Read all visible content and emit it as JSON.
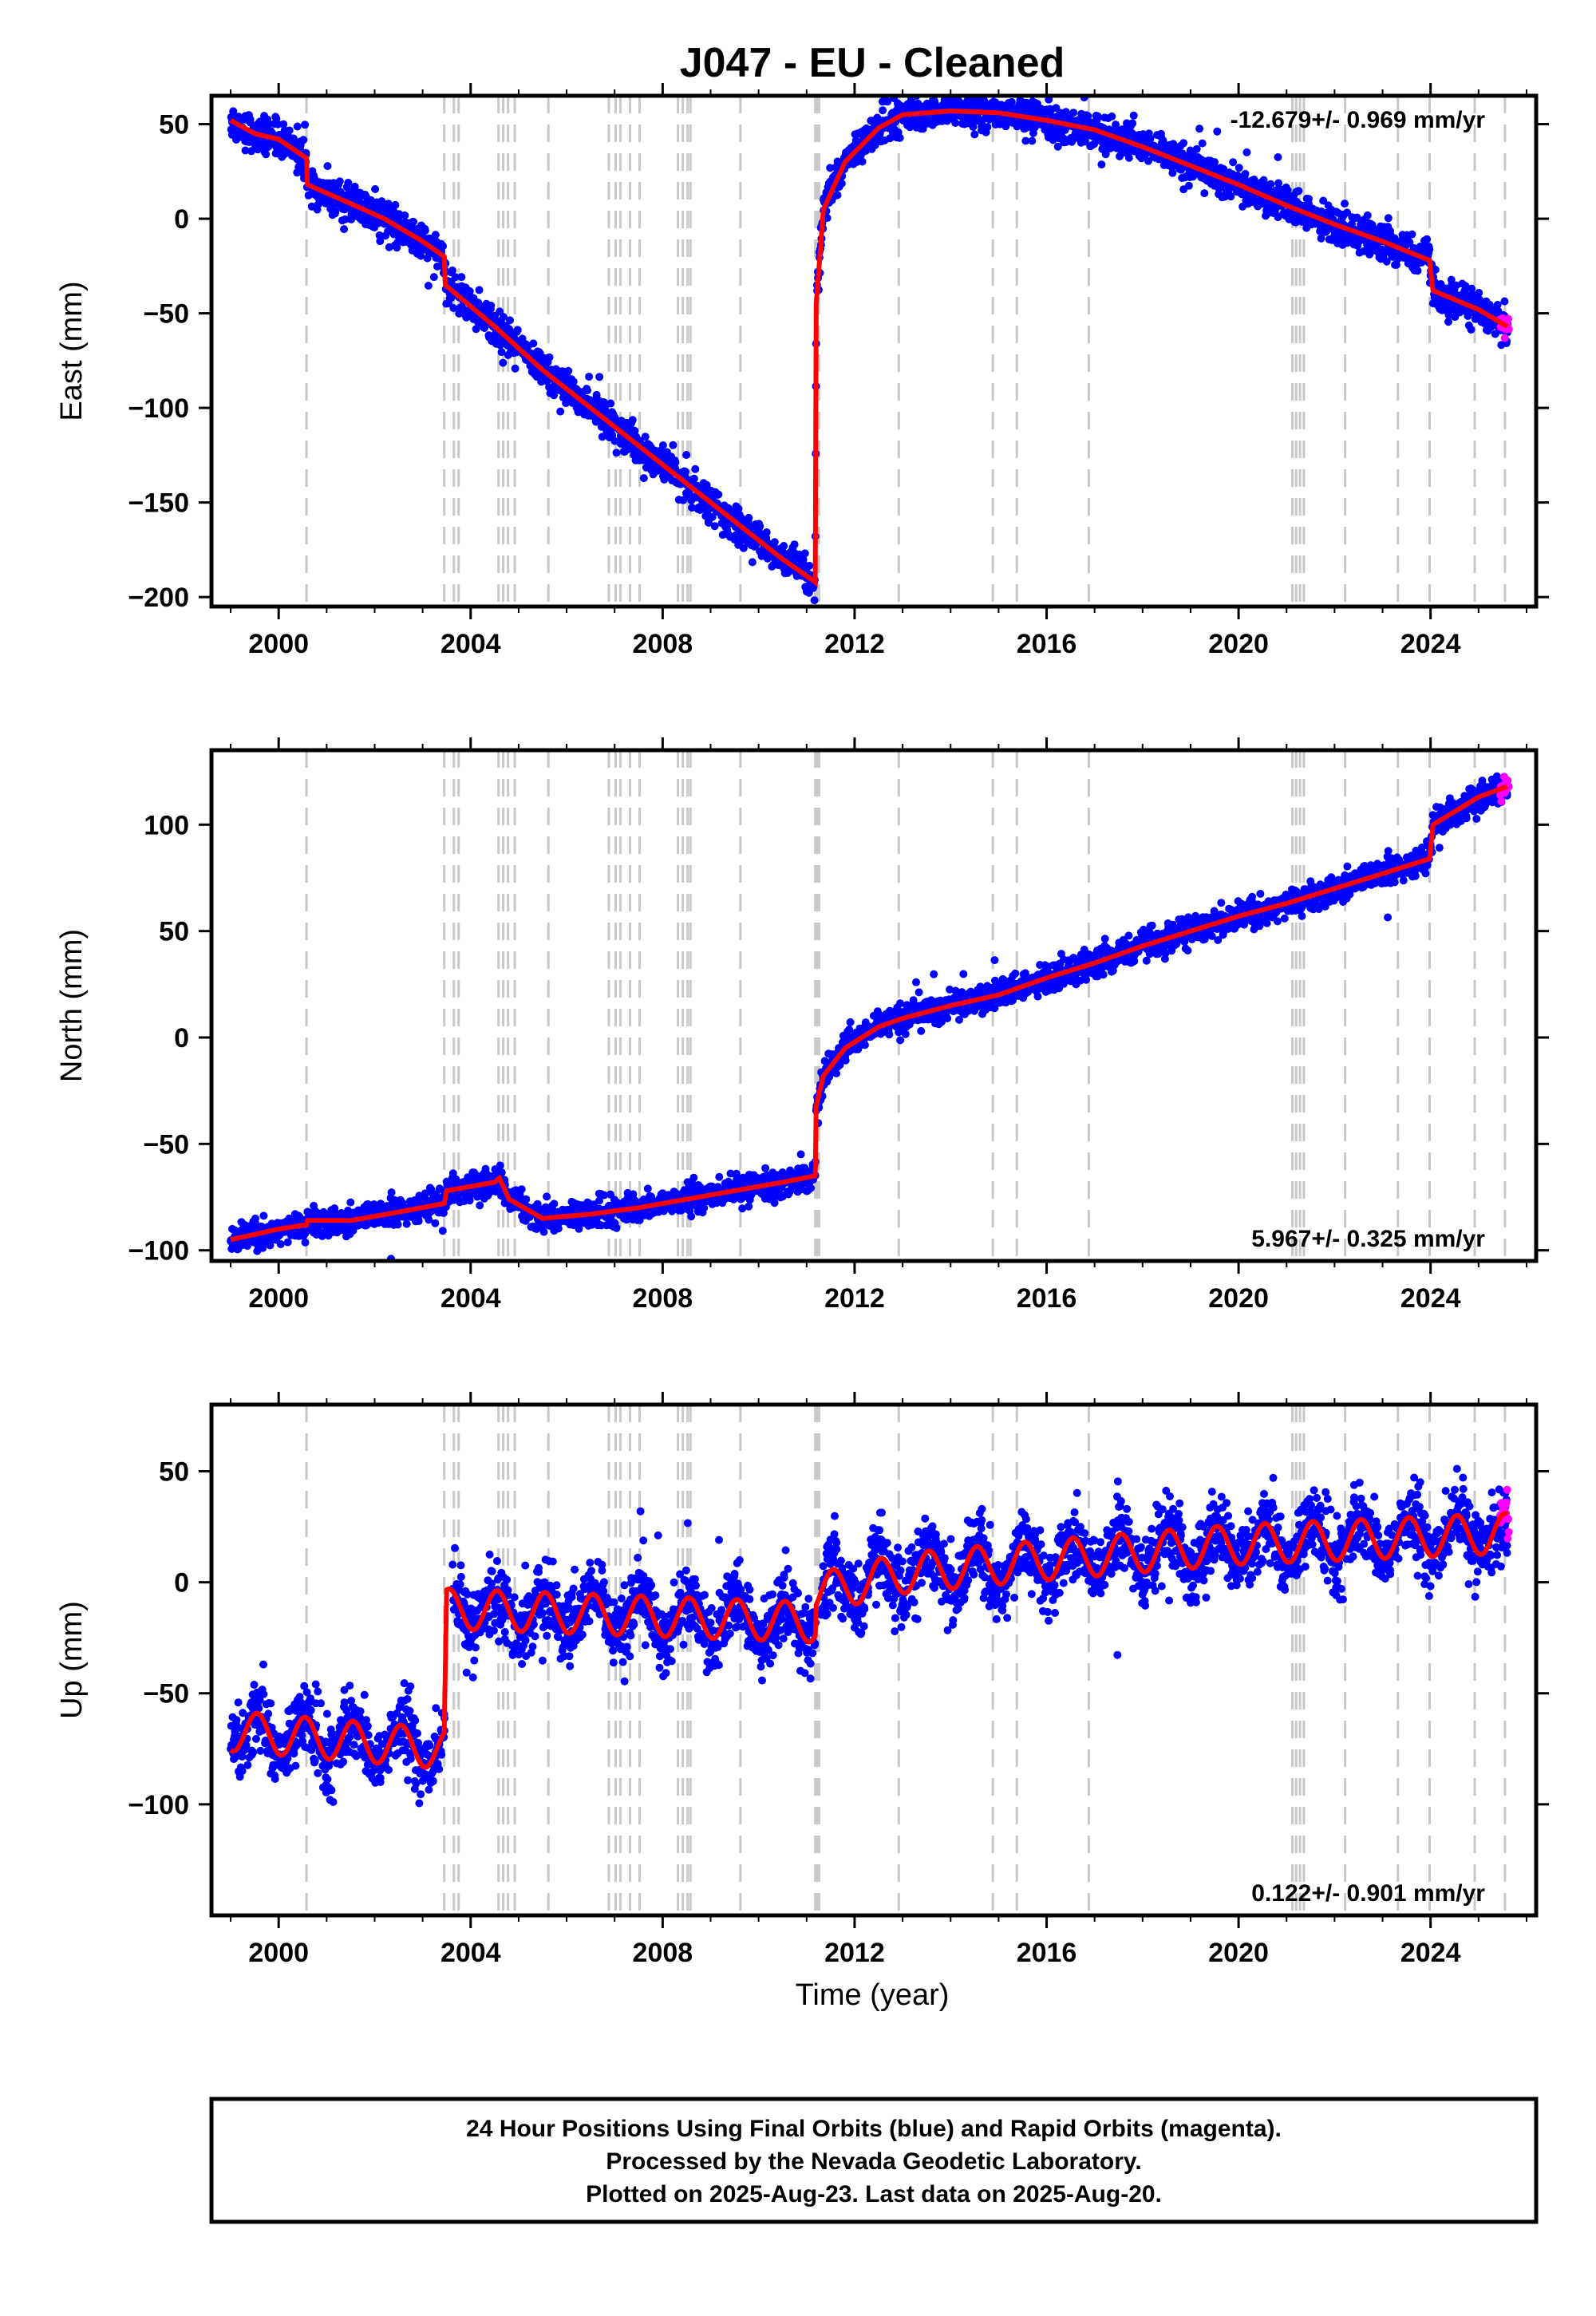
{
  "title": "J047  - EU - Cleaned",
  "xlabel": "Time (year)",
  "footer": [
    "24 Hour Positions Using Final Orbits (blue) and Rapid Orbits (magenta).",
    "Processed by the Nevada Geodetic Laboratory.",
    "Plotted on 2025-Aug-23. Last data on 2025-Aug-20."
  ],
  "colors": {
    "final": "#0000ff",
    "rapid": "#ff00ff",
    "model": "#ff0000",
    "events": "#c8c8c8"
  },
  "event_lines": [
    2000.58,
    2003.45,
    2003.65,
    2003.75,
    2004.58,
    2004.68,
    2004.78,
    2004.92,
    2005.62,
    2006.88,
    2007.02,
    2007.12,
    2007.32,
    2007.52,
    2008.32,
    2008.42,
    2008.52,
    2008.58,
    2009.62,
    2011.18,
    2011.22,
    2011.26,
    2012.92,
    2014.88,
    2015.38,
    2016.88,
    2021.12,
    2021.2,
    2021.28,
    2021.36,
    2022.22,
    2023.32,
    2023.98,
    2024.92,
    2025.55
  ],
  "chart_data": [
    {
      "type": "scatter",
      "name": "east",
      "ylabel": "East (mm)",
      "rate_label": "-12.679+/- 0.969 mm/yr",
      "xlim": [
        1998.6,
        2026.2
      ],
      "ylim": [
        -205,
        65
      ],
      "xticks": [
        2000,
        2004,
        2008,
        2012,
        2016,
        2020,
        2024
      ],
      "yticks": [
        50,
        0,
        -50,
        -100,
        -150,
        -200
      ],
      "model_knots": [
        [
          1999.0,
          52
        ],
        [
          1999.5,
          45
        ],
        [
          2000.0,
          42
        ],
        [
          2000.58,
          32
        ],
        [
          2000.6,
          18
        ],
        [
          2001.5,
          8
        ],
        [
          2002.2,
          0
        ],
        [
          2003.0,
          -12
        ],
        [
          2003.45,
          -20
        ],
        [
          2003.47,
          -35
        ],
        [
          2004.5,
          -57
        ],
        [
          2005.5,
          -80
        ],
        [
          2006.5,
          -100
        ],
        [
          2007.5,
          -120
        ],
        [
          2008.5,
          -140
        ],
        [
          2009.5,
          -160
        ],
        [
          2010.5,
          -180
        ],
        [
          2011.18,
          -192
        ],
        [
          2011.2,
          -45
        ],
        [
          2011.35,
          5
        ],
        [
          2011.8,
          30
        ],
        [
          2012.5,
          48
        ],
        [
          2013.0,
          55
        ],
        [
          2014.0,
          57
        ],
        [
          2015.0,
          56
        ],
        [
          2016.0,
          52
        ],
        [
          2017.0,
          47
        ],
        [
          2018.0,
          38
        ],
        [
          2019.0,
          28
        ],
        [
          2020.0,
          18
        ],
        [
          2021.0,
          7
        ],
        [
          2022.0,
          -3
        ],
        [
          2023.0,
          -12
        ],
        [
          2023.98,
          -22
        ],
        [
          2024.05,
          -38
        ],
        [
          2025.0,
          -48
        ],
        [
          2025.6,
          -57
        ]
      ],
      "scatter_sigma": 4.5,
      "scatter_jitter": 2.5,
      "gaps": []
    },
    {
      "type": "scatter",
      "name": "north",
      "ylabel": "North (mm)",
      "rate_label": "5.967+/- 0.325 mm/yr",
      "xlim": [
        1998.6,
        2026.2
      ],
      "ylim": [
        -105,
        135
      ],
      "xticks": [
        2000,
        2004,
        2008,
        2012,
        2016,
        2020,
        2024
      ],
      "yticks": [
        100,
        50,
        0,
        -50,
        -100
      ],
      "model_knots": [
        [
          1999.0,
          -95
        ],
        [
          2000.0,
          -90
        ],
        [
          2000.58,
          -88
        ],
        [
          2000.6,
          -86
        ],
        [
          2001.5,
          -86
        ],
        [
          2002.5,
          -82
        ],
        [
          2003.45,
          -78
        ],
        [
          2003.5,
          -72
        ],
        [
          2004.5,
          -68
        ],
        [
          2004.6,
          -66
        ],
        [
          2004.8,
          -76
        ],
        [
          2005.5,
          -85
        ],
        [
          2006.5,
          -83
        ],
        [
          2007.5,
          -80
        ],
        [
          2008.5,
          -76
        ],
        [
          2009.5,
          -72
        ],
        [
          2010.5,
          -68
        ],
        [
          2011.18,
          -65
        ],
        [
          2011.2,
          -32
        ],
        [
          2011.35,
          -18
        ],
        [
          2011.8,
          -5
        ],
        [
          2012.5,
          5
        ],
        [
          2013.0,
          9
        ],
        [
          2014.0,
          15
        ],
        [
          2015.0,
          20
        ],
        [
          2016.0,
          28
        ],
        [
          2017.0,
          35
        ],
        [
          2018.0,
          43
        ],
        [
          2019.0,
          50
        ],
        [
          2020.0,
          57
        ],
        [
          2021.0,
          63
        ],
        [
          2022.0,
          70
        ],
        [
          2023.0,
          77
        ],
        [
          2023.98,
          84
        ],
        [
          2024.05,
          100
        ],
        [
          2025.0,
          113
        ],
        [
          2025.6,
          118
        ]
      ],
      "scatter_sigma": 3.2,
      "scatter_jitter": 2,
      "gaps": []
    },
    {
      "type": "scatter",
      "name": "up",
      "ylabel": "Up (mm)",
      "rate_label": "0.122+/- 0.901 mm/yr",
      "xlim": [
        1998.6,
        2026.2
      ],
      "ylim": [
        -150,
        80
      ],
      "xticks": [
        2000,
        2004,
        2008,
        2012,
        2016,
        2020,
        2024
      ],
      "yticks": [
        50,
        0,
        -50,
        -100
      ],
      "model_knots": [
        [
          1999.0,
          -67
        ],
        [
          2003.45,
          -75
        ],
        [
          2003.5,
          -12
        ],
        [
          2011.18,
          -18
        ],
        [
          2011.2,
          -5
        ],
        [
          2013.0,
          4
        ],
        [
          2016.0,
          10
        ],
        [
          2020.0,
          17
        ],
        [
          2025.6,
          22
        ]
      ],
      "seasonal_amplitude": 9,
      "scatter_sigma": 8,
      "scatter_jitter": 4,
      "gaps": [
        [
          2003.45,
          2003.62
        ],
        [
          2011.18,
          2011.3
        ]
      ]
    }
  ]
}
